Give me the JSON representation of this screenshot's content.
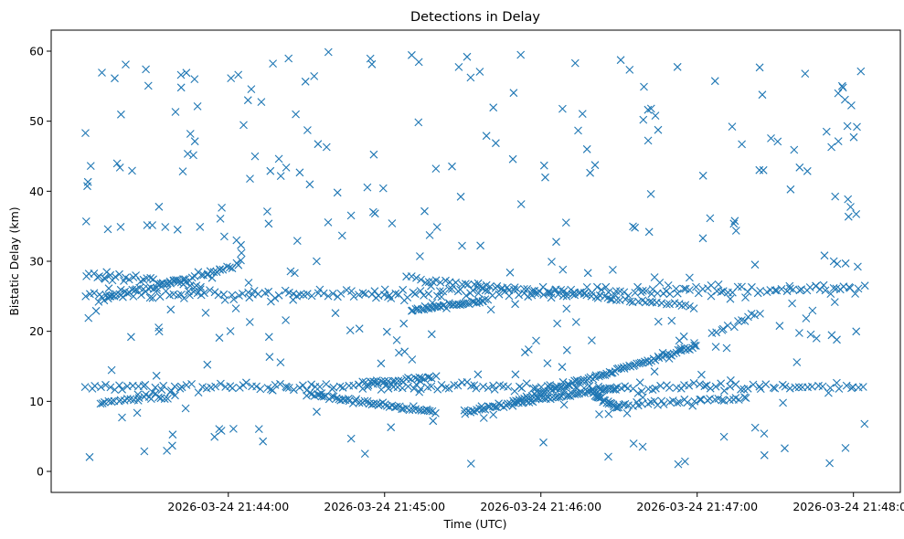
{
  "chart_data": {
    "type": "scatter",
    "title": "Detections in Delay",
    "xlabel": "Time (UTC)",
    "ylabel": "Bistatic Delay (km)",
    "marker": "x",
    "color": "#1f77b4",
    "grid": false,
    "legend": "none",
    "x_is_time": true,
    "xlim": [
      "2026-03-24 21:42:52",
      "2026-03-24 21:48:18"
    ],
    "ylim": [
      -3,
      63
    ],
    "x_ticks": [
      "2026-03-24 21:44:00",
      "2026-03-24 21:45:00",
      "2026-03-24 21:46:00",
      "2026-03-24 21:47:00",
      "2026-03-24 21:48:00"
    ],
    "y_ticks": [
      0,
      10,
      20,
      30,
      40,
      50,
      60
    ],
    "x_range_sampled": [
      "2026-03-24 21:43:05",
      "2026-03-24 21:48:05"
    ],
    "tracks": [
      {
        "from": [
          "2026-03-24 21:43:05",
          25.0
        ],
        "to": [
          "2026-03-24 21:48:05",
          26.0
        ],
        "count": 190,
        "jitter": 0.8
      },
      {
        "from": [
          "2026-03-24 21:43:05",
          28.0
        ],
        "to": [
          "2026-03-24 21:43:50",
          26.5
        ],
        "count": 35,
        "jitter": 0.5
      },
      {
        "from": [
          "2026-03-24 21:43:10",
          24.5
        ],
        "to": [
          "2026-03-24 21:44:05",
          29.5
        ],
        "count": 45,
        "jitter": 0.4
      },
      {
        "from": [
          "2026-03-24 21:45:10",
          23.0
        ],
        "to": [
          "2026-03-24 21:45:40",
          24.5
        ],
        "count": 40,
        "jitter": 0.3
      },
      {
        "from": [
          "2026-03-24 21:45:10",
          27.5
        ],
        "to": [
          "2026-03-24 21:47:00",
          23.5
        ],
        "count": 70,
        "jitter": 0.4
      },
      {
        "from": [
          "2026-03-24 21:43:05",
          12.0
        ],
        "to": [
          "2026-03-24 21:48:05",
          12.0
        ],
        "count": 170,
        "jitter": 0.6
      },
      {
        "from": [
          "2026-03-24 21:43:10",
          9.8
        ],
        "to": [
          "2026-03-24 21:43:40",
          11.0
        ],
        "count": 25,
        "jitter": 0.5
      },
      {
        "from": [
          "2026-03-24 21:44:30",
          11.0
        ],
        "to": [
          "2026-03-24 21:45:20",
          8.5
        ],
        "count": 55,
        "jitter": 0.3
      },
      {
        "from": [
          "2026-03-24 21:44:50",
          12.5
        ],
        "to": [
          "2026-03-24 21:45:20",
          13.5
        ],
        "count": 30,
        "jitter": 0.3
      },
      {
        "from": [
          "2026-03-24 21:45:30",
          8.5
        ],
        "to": [
          "2026-03-24 21:46:30",
          12.0
        ],
        "count": 70,
        "jitter": 0.3
      },
      {
        "from": [
          "2026-03-24 21:45:50",
          10.0
        ],
        "to": [
          "2026-03-24 21:47:00",
          18.0
        ],
        "count": 90,
        "jitter": 0.3
      },
      {
        "from": [
          "2026-03-24 21:46:20",
          11.0
        ],
        "to": [
          "2026-03-24 21:46:30",
          9.0
        ],
        "count": 20,
        "jitter": 0.4
      },
      {
        "from": [
          "2026-03-24 21:46:30",
          9.5
        ],
        "to": [
          "2026-03-24 21:47:20",
          10.5
        ],
        "count": 35,
        "jitter": 0.5
      },
      {
        "from": [
          "2026-03-24 21:47:05",
          19.5
        ],
        "to": [
          "2026-03-24 21:47:25",
          23.0
        ],
        "count": 12,
        "jitter": 0.4
      }
    ],
    "clutter": {
      "count": 330,
      "y_range": [
        0.8,
        60
      ]
    },
    "point_total": 1217
  }
}
